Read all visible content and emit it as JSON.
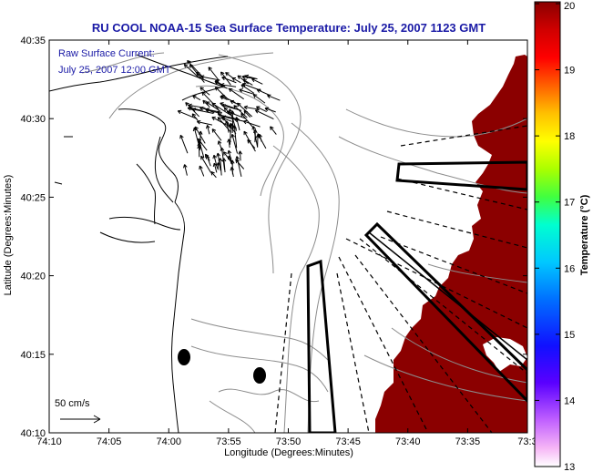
{
  "title": "RU COOL  NOAA-15  Sea Surface Temperature:  July 25, 2007 1123 GMT",
  "current_note": {
    "line1": "Raw Surface Current:",
    "line2": "July 25, 2007 12:00 GMT"
  },
  "scale_label": "50 cm/s",
  "x_axis": {
    "label": "Longitude (Degrees:Minutes)",
    "ticks": [
      "74:10",
      "74:05",
      "74:00",
      "73:55",
      "73:50",
      "73:45",
      "73:40",
      "73:35",
      "73:3"
    ]
  },
  "y_axis": {
    "label": "Latitude (Degrees:Minutes)",
    "ticks": [
      "40:35",
      "40:30",
      "40:25",
      "40:20",
      "40:15",
      "40:10"
    ]
  },
  "colorbar": {
    "label": "Temperature (°C)",
    "ticks": [
      "20",
      "19",
      "18",
      "17",
      "16",
      "15",
      "14",
      "13"
    ],
    "sst_color": "#8b0000"
  }
}
